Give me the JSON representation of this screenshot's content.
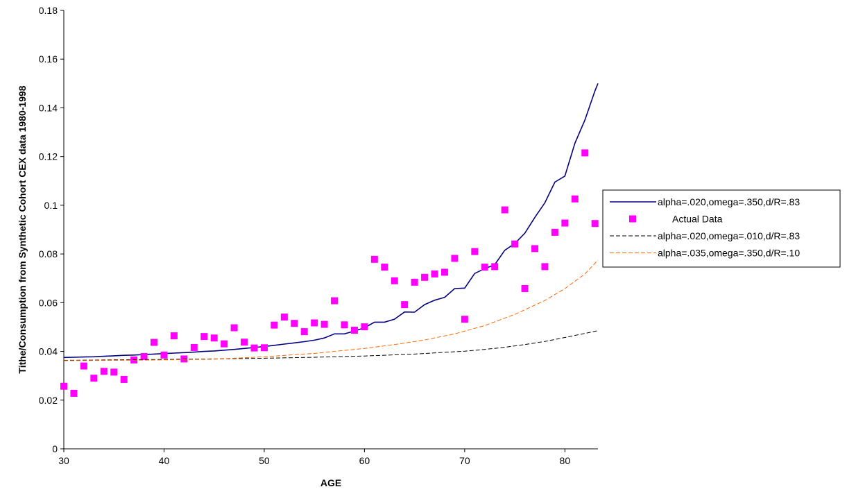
{
  "chart_data": {
    "type": "line",
    "xlabel": "AGE",
    "ylabel": "Tithe/Consumption from Synthetic Cohort CEX data 1980-1998",
    "xlim": [
      30,
      83.3
    ],
    "ylim": [
      0,
      0.18
    ],
    "x_ticks": [
      "30",
      "40",
      "50",
      "60",
      "70",
      "80"
    ],
    "y_ticks": [
      "0",
      "0.02",
      "0.04",
      "0.06",
      "0.08",
      "0.1",
      "0.12",
      "0.14",
      "0.16",
      "0.18"
    ],
    "grid": false,
    "legend_position": "right",
    "series": [
      {
        "name": "alpha=.020,omega=.350,d/R=.83",
        "style": "solid",
        "marker": "none",
        "color": "#000080",
        "x": [
          30,
          31,
          32,
          33,
          34,
          35,
          36,
          37,
          38,
          39,
          40,
          41,
          42,
          43,
          44,
          45,
          46,
          47,
          48,
          49,
          50,
          51,
          52,
          53,
          54,
          55,
          56,
          57,
          58,
          59,
          60,
          61,
          62,
          63,
          64,
          65,
          66,
          67,
          68,
          69,
          70,
          71,
          72,
          73,
          74,
          75,
          76,
          77,
          78,
          79,
          80,
          81,
          82,
          83,
          83.3
        ],
        "y": [
          0.0375,
          0.0376,
          0.0377,
          0.0378,
          0.038,
          0.0382,
          0.0384,
          0.0385,
          0.0387,
          0.0389,
          0.0391,
          0.0393,
          0.0395,
          0.0397,
          0.04,
          0.0402,
          0.0405,
          0.0408,
          0.0412,
          0.0416,
          0.042,
          0.0425,
          0.043,
          0.0435,
          0.044,
          0.0446,
          0.0455,
          0.0472,
          0.0472,
          0.0484,
          0.0497,
          0.052,
          0.052,
          0.0532,
          0.0562,
          0.0561,
          0.0592,
          0.061,
          0.0622,
          0.0658,
          0.066,
          0.072,
          0.074,
          0.0756,
          0.0815,
          0.0843,
          0.0885,
          0.095,
          0.101,
          0.1095,
          0.112,
          0.1255,
          0.135,
          0.147,
          0.15
        ]
      },
      {
        "name": "Actual Data",
        "style": "none",
        "marker": "square",
        "color": "#FF00FF",
        "x": [
          30,
          31,
          32,
          33,
          34,
          35,
          36,
          37,
          38,
          39,
          40,
          41,
          42,
          43,
          44,
          45,
          46,
          47,
          48,
          49,
          50,
          51,
          52,
          53,
          54,
          55,
          56,
          57,
          58,
          59,
          60,
          61,
          62,
          63,
          64,
          65,
          66,
          67,
          68,
          69,
          70,
          71,
          72,
          73,
          74,
          75,
          76,
          77,
          78,
          79,
          80,
          81,
          82,
          83
        ],
        "y": [
          0.0257,
          0.0228,
          0.034,
          0.029,
          0.0318,
          0.0315,
          0.0285,
          0.0365,
          0.0379,
          0.0437,
          0.0385,
          0.0464,
          0.0369,
          0.0416,
          0.0461,
          0.0455,
          0.0431,
          0.0497,
          0.0438,
          0.0414,
          0.0415,
          0.0508,
          0.0541,
          0.0515,
          0.0481,
          0.0517,
          0.0511,
          0.0608,
          0.0509,
          0.0487,
          0.0501,
          0.0778,
          0.0746,
          0.069,
          0.0592,
          0.0684,
          0.0704,
          0.0718,
          0.0725,
          0.0782,
          0.0532,
          0.081,
          0.0746,
          0.0748,
          0.0981,
          0.0841,
          0.0658,
          0.0822,
          0.0748,
          0.0889,
          0.0927,
          0.1026,
          0.1215,
          0.0925
        ]
      },
      {
        "name": "alpha=.020,omega=.010,d/R=.83",
        "style": "dashed",
        "marker": "none",
        "color": "#000000",
        "x": [
          30,
          35,
          40,
          45,
          50,
          55,
          60,
          65,
          70,
          72,
          74,
          76,
          78,
          80,
          82,
          83.3
        ],
        "y": [
          0.0363,
          0.0365,
          0.0367,
          0.0369,
          0.0372,
          0.0376,
          0.0381,
          0.0389,
          0.0401,
          0.0408,
          0.0417,
          0.0428,
          0.0441,
          0.0457,
          0.0474,
          0.0485
        ]
      },
      {
        "name": "alpha=.035,omega=.350,d/R=.10",
        "style": "dashed",
        "marker": "none",
        "color": "#FF6600",
        "x": [
          30,
          35,
          40,
          45,
          50,
          55,
          60,
          63,
          66,
          69,
          72,
          75,
          78,
          80,
          82,
          83.3
        ],
        "y": [
          0.0362,
          0.0363,
          0.0365,
          0.0368,
          0.0378,
          0.0392,
          0.0412,
          0.0428,
          0.0447,
          0.0472,
          0.0506,
          0.0552,
          0.0609,
          0.0658,
          0.0718,
          0.0775
        ]
      }
    ]
  }
}
